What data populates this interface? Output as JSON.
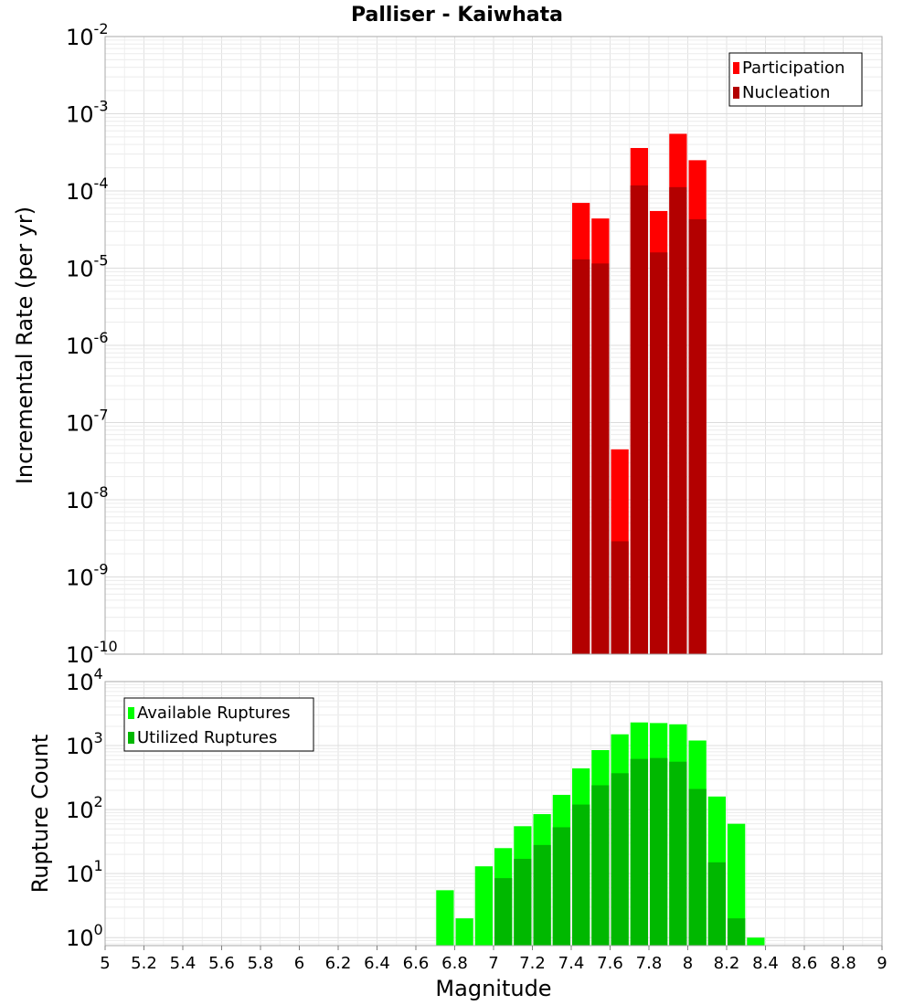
{
  "chart_data": [
    {
      "type": "bar",
      "title": "Palliser - Kaiwhata",
      "xlabel": "Magnitude",
      "ylabel": "Incremental Rate (per yr)",
      "y_scale": "log",
      "xlim": [
        5,
        9
      ],
      "ylim": [
        1e-10,
        0.01
      ],
      "y_ticks": [
        {
          "base": "10",
          "exp": "-10",
          "value": 1e-10
        },
        {
          "base": "10",
          "exp": "-9",
          "value": 1e-09
        },
        {
          "base": "10",
          "exp": "-8",
          "value": 1e-08
        },
        {
          "base": "10",
          "exp": "-7",
          "value": 1e-07
        },
        {
          "base": "10",
          "exp": "-6",
          "value": 1e-06
        },
        {
          "base": "10",
          "exp": "-5",
          "value": 1e-05
        },
        {
          "base": "10",
          "exp": "-4",
          "value": 0.0001
        },
        {
          "base": "10",
          "exp": "-3",
          "value": 0.001
        },
        {
          "base": "10",
          "exp": "-2",
          "value": 0.01
        }
      ],
      "grid": true,
      "legend_position": "top-right",
      "x": [
        7.45,
        7.55,
        7.65,
        7.75,
        7.85,
        7.95,
        8.05
      ],
      "series": [
        {
          "name": "Participation",
          "color": "#ff0000",
          "values": [
            7e-05,
            4.4e-05,
            4.5e-08,
            0.00036,
            5.5e-05,
            0.00055,
            0.00025
          ]
        },
        {
          "name": "Nucleation",
          "color": "#b30000",
          "values": [
            1.3e-05,
            1.15e-05,
            2.9e-09,
            0.000118,
            1.6e-05,
            0.000112,
            4.3e-05
          ]
        }
      ]
    },
    {
      "type": "bar",
      "title": "",
      "xlabel": "Magnitude",
      "ylabel": "Rupture Count",
      "y_scale": "log",
      "xlim": [
        5,
        9
      ],
      "ylim": [
        0.75,
        10000
      ],
      "y_ticks": [
        {
          "base": "10",
          "exp": "0",
          "value": 1
        },
        {
          "base": "10",
          "exp": "1",
          "value": 10
        },
        {
          "base": "10",
          "exp": "2",
          "value": 100
        },
        {
          "base": "10",
          "exp": "3",
          "value": 1000
        },
        {
          "base": "10",
          "exp": "4",
          "value": 10000
        }
      ],
      "x_ticks": [
        "5",
        "5.2",
        "5.4",
        "5.6",
        "5.8",
        "6",
        "6.2",
        "6.4",
        "6.6",
        "6.8",
        "7",
        "7.2",
        "7.4",
        "7.6",
        "7.8",
        "8",
        "8.2",
        "8.4",
        "8.6",
        "8.8",
        "9"
      ],
      "grid": true,
      "legend_position": "top-left",
      "x": [
        6.75,
        6.85,
        6.95,
        7.05,
        7.15,
        7.25,
        7.35,
        7.45,
        7.55,
        7.65,
        7.75,
        7.85,
        7.95,
        8.05,
        8.15,
        8.25,
        8.35
      ],
      "series": [
        {
          "name": "Available Ruptures",
          "color": "#00ff00",
          "values": [
            5.5,
            2,
            13,
            25,
            55,
            85,
            170,
            440,
            850,
            1500,
            2300,
            2250,
            2150,
            1200,
            160,
            60,
            1
          ]
        },
        {
          "name": "Utilized Ruptures",
          "color": "#00b800",
          "values": [
            0,
            0,
            0,
            8.5,
            17,
            28,
            53,
            120,
            240,
            370,
            620,
            640,
            560,
            210,
            15,
            2,
            0
          ]
        }
      ]
    }
  ]
}
